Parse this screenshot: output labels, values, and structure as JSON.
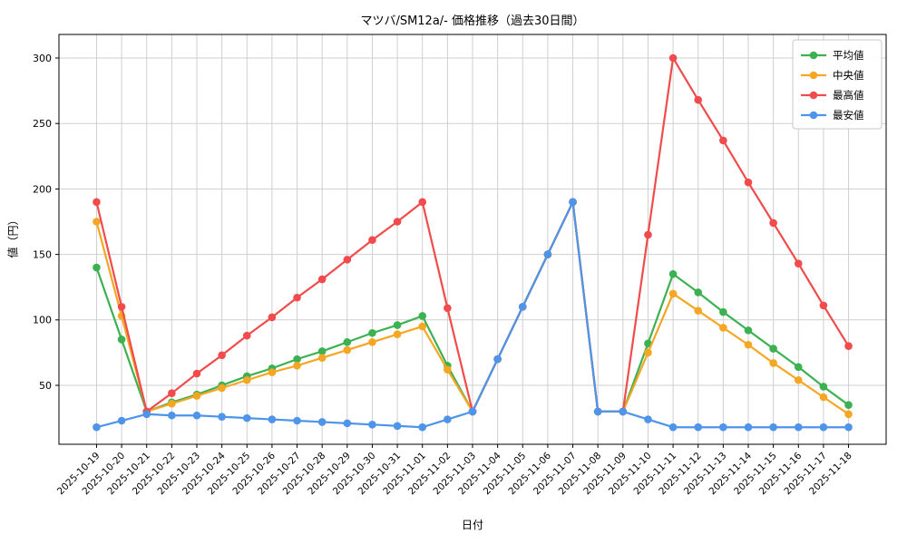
{
  "chart_data": {
    "type": "line",
    "title": "マツバ/SM12a/- 価格推移（過去30日間）",
    "xlabel": "日付",
    "ylabel": "値（円）",
    "x": [
      "2025-10-19",
      "2025-10-20",
      "2025-10-21",
      "2025-10-22",
      "2025-10-23",
      "2025-10-24",
      "2025-10-25",
      "2025-10-26",
      "2025-10-27",
      "2025-10-28",
      "2025-10-29",
      "2025-10-30",
      "2025-10-31",
      "2025-11-01",
      "2025-11-02",
      "2025-11-03",
      "2025-11-04",
      "2025-11-05",
      "2025-11-06",
      "2025-11-07",
      "2025-11-08",
      "2025-11-09",
      "2025-11-10",
      "2025-11-11",
      "2025-11-12",
      "2025-11-13",
      "2025-11-14",
      "2025-11-15",
      "2025-11-16",
      "2025-11-17",
      "2025-11-18"
    ],
    "series": [
      {
        "name": "平均値",
        "color": "#3bb152",
        "values": [
          140,
          85,
          30,
          37,
          43,
          50,
          57,
          63,
          70,
          76,
          83,
          90,
          96,
          103,
          65,
          30,
          70,
          110,
          150,
          190,
          30,
          30,
          82,
          135,
          121,
          106,
          92,
          78,
          64,
          49,
          35
        ]
      },
      {
        "name": "中央値",
        "color": "#f5a623",
        "values": [
          175,
          103,
          30,
          36,
          42,
          48,
          54,
          60,
          65,
          71,
          77,
          83,
          89,
          95,
          62,
          30,
          70,
          110,
          150,
          190,
          30,
          30,
          75,
          120,
          107,
          94,
          81,
          67,
          54,
          41,
          28
        ]
      },
      {
        "name": "最高値",
        "color": "#f14b4b",
        "values": [
          190,
          110,
          30,
          44,
          59,
          73,
          88,
          102,
          117,
          131,
          146,
          161,
          175,
          190,
          109,
          30,
          70,
          110,
          150,
          190,
          30,
          30,
          165,
          300,
          268,
          237,
          205,
          174,
          143,
          111,
          80
        ]
      },
      {
        "name": "最安値",
        "color": "#4d94ea",
        "values": [
          18,
          23,
          28,
          27,
          27,
          26,
          25,
          24,
          23,
          22,
          21,
          20,
          19,
          18,
          24,
          30,
          70,
          110,
          150,
          190,
          30,
          30,
          24,
          18,
          18,
          18,
          18,
          18,
          18,
          18,
          18
        ]
      }
    ],
    "yticks": [
      50,
      100,
      150,
      200,
      250,
      300
    ],
    "ylim": [
      5,
      318
    ],
    "grid": true,
    "legend_position": "upper right"
  }
}
